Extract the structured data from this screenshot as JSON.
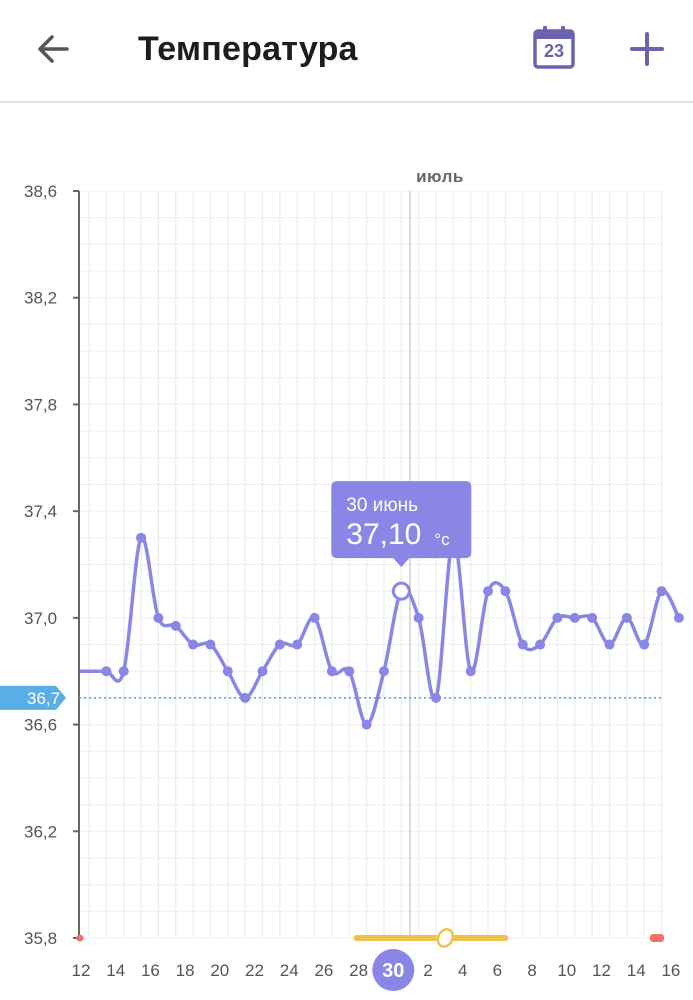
{
  "header": {
    "title": "Температура",
    "calendar_day": "23",
    "back_icon": "arrow-left-icon",
    "calendar_icon": "calendar-icon",
    "add_icon": "plus-icon"
  },
  "colors": {
    "accent": "#8a86e6",
    "coverline": "#3aa6dc",
    "period": "#f0c050",
    "period_red": "#f0706a",
    "selected_day_bg": "#8a86e6"
  },
  "chart_data": {
    "type": "line",
    "month_label": "июль",
    "y_ticks": [
      "38,6",
      "38,2",
      "37,8",
      "37,4",
      "37,0",
      "36,6",
      "36,2",
      "35,8"
    ],
    "ylim": [
      35.8,
      38.6
    ],
    "coverline": {
      "value": 36.7,
      "label": "36,7"
    },
    "x_tick_labels": [
      "12",
      "14",
      "16",
      "18",
      "20",
      "22",
      "24",
      "26",
      "28",
      "30",
      "2",
      "4",
      "6",
      "8",
      "10",
      "12",
      "14",
      "16"
    ],
    "x": [
      "06-12",
      "06-13",
      "06-14",
      "06-15",
      "06-16",
      "06-17",
      "06-18",
      "06-19",
      "06-20",
      "06-21",
      "06-22",
      "06-23",
      "06-24",
      "06-25",
      "06-26",
      "06-27",
      "06-28",
      "06-29",
      "06-30",
      "07-01",
      "07-02",
      "07-03",
      "07-04",
      "07-05",
      "07-06",
      "07-07",
      "07-08",
      "07-09",
      "07-10",
      "07-11",
      "07-12",
      "07-13",
      "07-14",
      "07-15",
      "07-16"
    ],
    "values": [
      36.8,
      36.8,
      36.8,
      37.3,
      37.0,
      36.97,
      36.9,
      36.9,
      36.8,
      36.7,
      36.8,
      36.9,
      36.9,
      37.0,
      36.8,
      36.8,
      36.6,
      36.8,
      37.1,
      37.0,
      36.7,
      37.3,
      36.8,
      37.1,
      37.1,
      36.9,
      36.9,
      37.0,
      37.0,
      37.0,
      36.9,
      37.0,
      36.9,
      37.1,
      37.0
    ],
    "selected": {
      "date": "06-30",
      "day_label": "30",
      "tooltip_date": "30 июнь",
      "tooltip_value": "37,10",
      "unit": "°c"
    },
    "period_range": [
      "06-28",
      "07-06"
    ],
    "ovulation_day": "07-03"
  }
}
